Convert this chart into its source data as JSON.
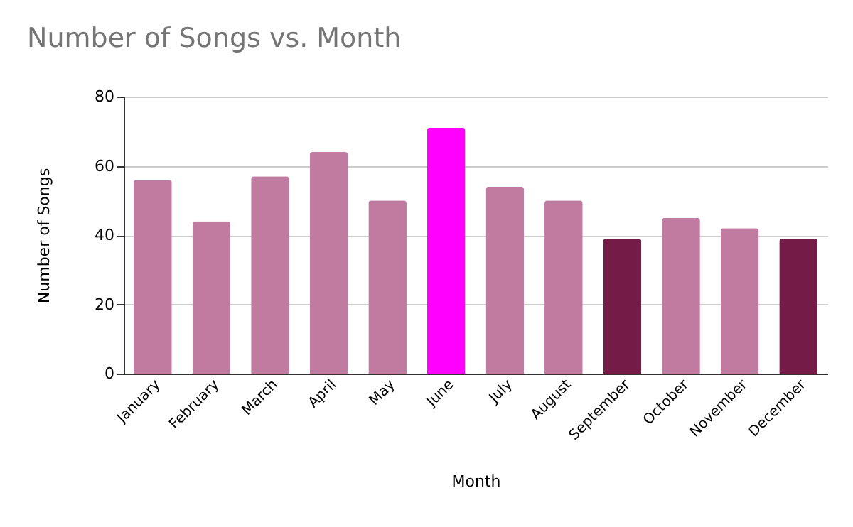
{
  "chart_data": {
    "type": "bar",
    "title": "Number of Songs vs. Month",
    "xlabel": "Month",
    "ylabel": "Number of Songs",
    "categories": [
      "January",
      "February",
      "March",
      "April",
      "May",
      "June",
      "July",
      "August",
      "September",
      "October",
      "November",
      "December"
    ],
    "values": [
      56,
      44,
      57,
      64,
      50,
      71,
      54,
      50,
      39,
      45,
      42,
      39
    ],
    "colors": [
      "#c27ba0",
      "#c27ba0",
      "#c27ba0",
      "#c27ba0",
      "#c27ba0",
      "#ff00ff",
      "#c27ba0",
      "#c27ba0",
      "#741b47",
      "#c27ba0",
      "#c27ba0",
      "#741b47"
    ],
    "ylim": [
      0,
      80
    ],
    "yticks": [
      0,
      20,
      40,
      60,
      80
    ],
    "grid": "y"
  }
}
